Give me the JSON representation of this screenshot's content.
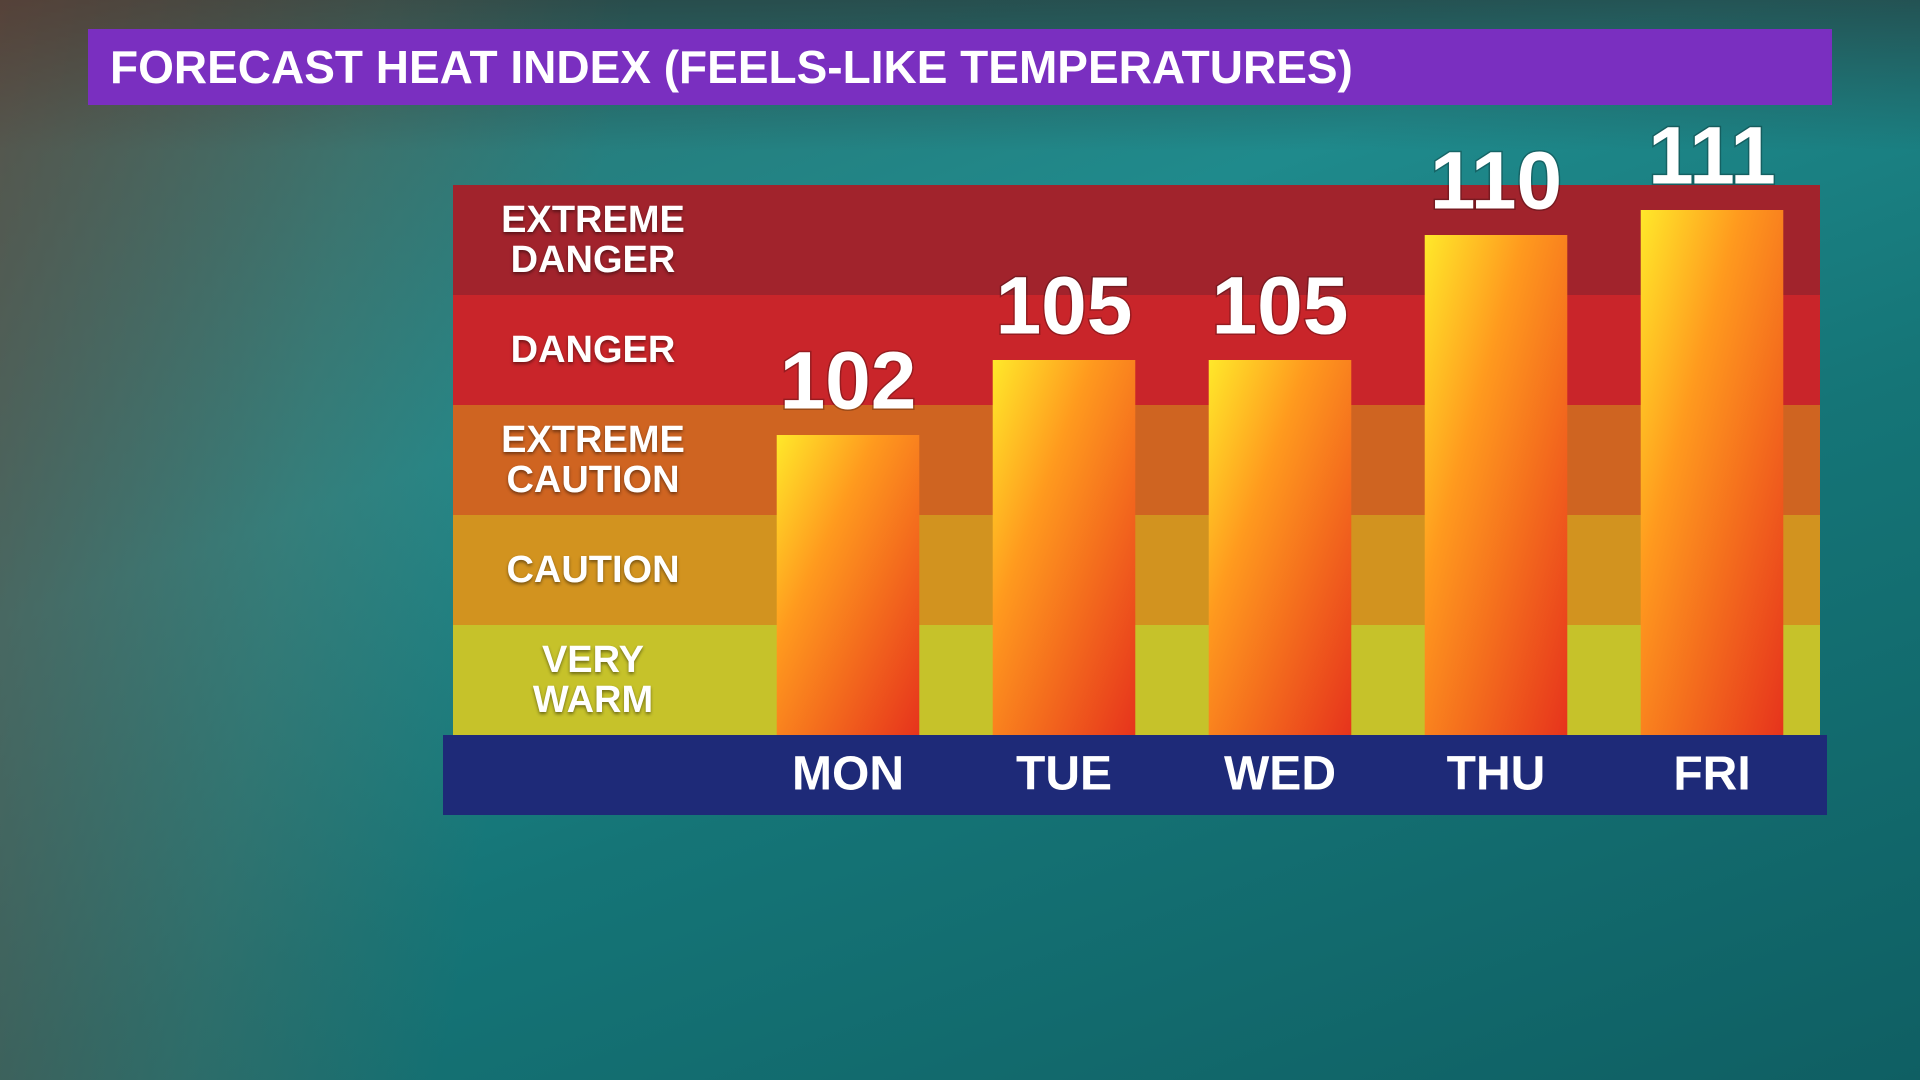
{
  "chart_data": {
    "type": "bar",
    "title": "FORECAST HEAT INDEX (FEELS-LIKE TEMPERATURES)",
    "categories": [
      "MON",
      "TUE",
      "WED",
      "THU",
      "FRI"
    ],
    "values": [
      102,
      105,
      105,
      110,
      111
    ],
    "ylim": [
      90,
      112
    ],
    "bands": [
      {
        "label": "VERY WARM",
        "color": "#c6c22a"
      },
      {
        "label": "CAUTION",
        "color": "#d2931f"
      },
      {
        "label": "EXTREME CAUTION",
        "color": "#cf6421"
      },
      {
        "label": "DANGER",
        "color": "#c9252a"
      },
      {
        "label": "EXTREME DANGER",
        "color": "#a1232c"
      }
    ]
  }
}
